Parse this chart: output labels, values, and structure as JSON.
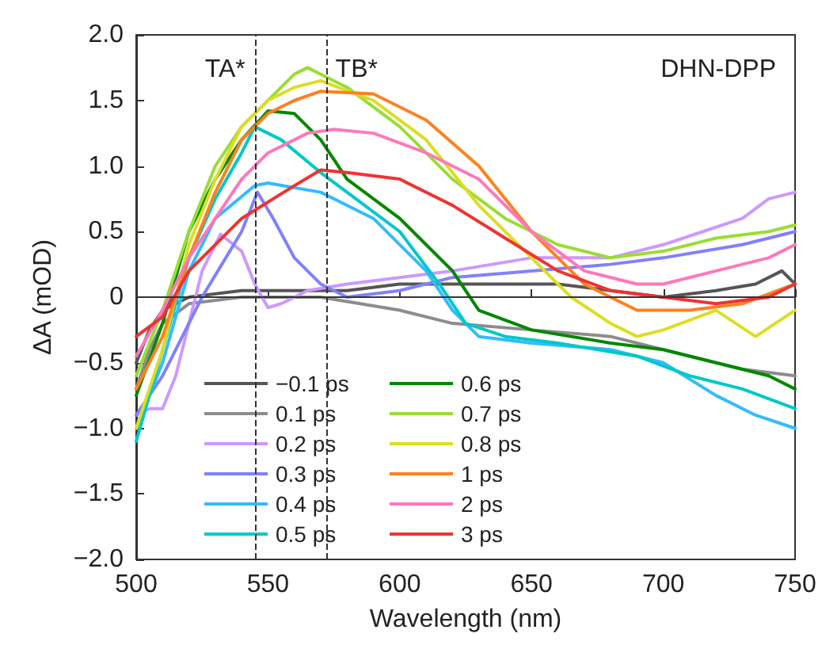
{
  "chart_data": {
    "type": "line",
    "xlabel": "Wavelength (nm)",
    "ylabel": "ΔA (mOD)",
    "xlim": [
      500,
      750
    ],
    "xticks": [
      500,
      550,
      600,
      650,
      700,
      750
    ],
    "ylim": [
      -2.0,
      2.0
    ],
    "yticks": [
      {
        "value": -2,
        "label": "−2.0"
      },
      {
        "value": -1.5,
        "label": "−1.5"
      },
      {
        "value": -1,
        "label": "−1.0"
      },
      {
        "value": -0.5,
        "label": "−0.5"
      },
      {
        "value": 0,
        "label": "0"
      },
      {
        "value": 0.5,
        "label": "0.5"
      },
      {
        "value": 1,
        "label": "1.0"
      },
      {
        "value": 1.5,
        "label": "1.5"
      },
      {
        "value": 2,
        "label": "2.0"
      }
    ],
    "grid": false,
    "legend": "bottom left",
    "marker": "none",
    "line_style": "solid",
    "annotations": [
      "DHN-DPP"
    ],
    "ref_lines": [
      {
        "axis": "x",
        "value": 545,
        "label": "TA*",
        "color": "#333333",
        "line_style": "dashed"
      },
      {
        "axis": "x",
        "value": 572,
        "label": "TB*",
        "color": "#333333",
        "line_style": "dashed"
      },
      {
        "axis": "y",
        "value": 0,
        "color": "#333333",
        "line_style": "solid"
      }
    ],
    "series": [
      {
        "name": "−0.1 ps",
        "color": "#555555",
        "x": [
          500,
          505,
          510,
          520,
          540,
          560,
          580,
          600,
          620,
          650,
          660,
          680,
          700,
          720,
          735,
          745,
          750
        ],
        "values": [
          -0.5,
          -0.25,
          -0.1,
          0,
          0.05,
          0.05,
          0.05,
          0.1,
          0.1,
          0.1,
          0.1,
          0.05,
          0,
          0.05,
          0.1,
          0.2,
          0.1
        ]
      },
      {
        "name": "0.1 ps",
        "color": "#8c8c8c",
        "x": [
          500,
          505,
          510,
          520,
          540,
          570,
          600,
          620,
          650,
          680,
          710,
          730,
          750
        ],
        "values": [
          -0.7,
          -0.4,
          -0.2,
          -0.05,
          0,
          0,
          -0.1,
          -0.2,
          -0.25,
          -0.3,
          -0.45,
          -0.55,
          -0.6
        ]
      },
      {
        "name": "0.2 ps",
        "color": "#cc99ff",
        "x": [
          500,
          505,
          510,
          515,
          520,
          525,
          532,
          540,
          545,
          550,
          555,
          565,
          580,
          600,
          620,
          650,
          680,
          700,
          715,
          730,
          740,
          750
        ],
        "values": [
          -0.9,
          -0.85,
          -0.85,
          -0.6,
          -0.2,
          0.2,
          0.48,
          0.35,
          0.1,
          -0.08,
          -0.05,
          0.05,
          0.1,
          0.15,
          0.2,
          0.3,
          0.3,
          0.4,
          0.5,
          0.6,
          0.75,
          0.8
        ]
      },
      {
        "name": "0.3 ps",
        "color": "#8080ff",
        "x": [
          500,
          510,
          525,
          540,
          546,
          552,
          560,
          570,
          580,
          600,
          620,
          650,
          680,
          700,
          730,
          750
        ],
        "values": [
          -0.9,
          -0.6,
          0,
          0.5,
          0.8,
          0.6,
          0.3,
          0.1,
          0,
          0.05,
          0.15,
          0.2,
          0.25,
          0.3,
          0.4,
          0.5
        ]
      },
      {
        "name": "0.4 ps",
        "color": "#33bbff",
        "x": [
          500,
          510,
          520,
          530,
          545,
          550,
          570,
          590,
          610,
          620,
          630,
          650,
          680,
          700,
          720,
          735,
          750
        ],
        "values": [
          -1.0,
          -0.5,
          0.2,
          0.6,
          0.85,
          0.87,
          0.8,
          0.6,
          0.2,
          -0.1,
          -0.3,
          -0.35,
          -0.4,
          -0.5,
          -0.75,
          -0.9,
          -1.0
        ]
      },
      {
        "name": "0.5 ps",
        "color": "#00c8c8",
        "x": [
          500,
          510,
          520,
          530,
          540,
          545,
          555,
          570,
          580,
          600,
          615,
          625,
          640,
          660,
          690,
          710,
          730,
          750
        ],
        "values": [
          -1.1,
          -0.4,
          0.3,
          0.75,
          1.1,
          1.3,
          1.2,
          0.95,
          0.8,
          0.5,
          0.1,
          -0.2,
          -0.3,
          -0.35,
          -0.45,
          -0.6,
          -0.7,
          -0.85
        ]
      },
      {
        "name": "0.6 ps",
        "color": "#008800",
        "x": [
          500,
          510,
          520,
          530,
          540,
          550,
          560,
          570,
          580,
          600,
          620,
          630,
          650,
          680,
          700,
          720,
          740,
          750
        ],
        "values": [
          -0.75,
          -0.2,
          0.5,
          0.9,
          1.2,
          1.42,
          1.4,
          1.2,
          0.9,
          0.6,
          0.2,
          -0.1,
          -0.25,
          -0.35,
          -0.4,
          -0.5,
          -0.6,
          -0.7
        ]
      },
      {
        "name": "0.7 ps",
        "color": "#99dd33",
        "x": [
          500,
          510,
          520,
          530,
          540,
          550,
          560,
          565,
          580,
          600,
          620,
          640,
          660,
          680,
          700,
          720,
          740,
          750
        ],
        "values": [
          -0.6,
          -0.1,
          0.5,
          1.0,
          1.3,
          1.5,
          1.7,
          1.75,
          1.6,
          1.3,
          0.9,
          0.6,
          0.4,
          0.3,
          0.35,
          0.45,
          0.5,
          0.55
        ]
      },
      {
        "name": "0.8 ps",
        "color": "#dddd22",
        "x": [
          500,
          510,
          520,
          530,
          540,
          550,
          560,
          570,
          590,
          610,
          630,
          650,
          665,
          680,
          690,
          700,
          720,
          735,
          750
        ],
        "values": [
          -1.0,
          -0.4,
          0.4,
          0.9,
          1.3,
          1.5,
          1.6,
          1.65,
          1.5,
          1.2,
          0.7,
          0.3,
          0,
          -0.2,
          -0.3,
          -0.25,
          -0.1,
          -0.3,
          -0.1
        ]
      },
      {
        "name": "1 ps",
        "color": "#ff8020",
        "x": [
          500,
          510,
          520,
          530,
          540,
          550,
          560,
          570,
          590,
          610,
          630,
          650,
          670,
          690,
          710,
          730,
          750
        ],
        "values": [
          -0.7,
          -0.3,
          0.3,
          0.8,
          1.2,
          1.4,
          1.5,
          1.57,
          1.55,
          1.35,
          1.0,
          0.5,
          0.1,
          -0.1,
          -0.1,
          -0.05,
          0.1
        ]
      },
      {
        "name": "2 ps",
        "color": "#ff77bb",
        "x": [
          500,
          510,
          520,
          530,
          540,
          550,
          565,
          575,
          590,
          610,
          630,
          650,
          670,
          690,
          700,
          720,
          740,
          750
        ],
        "values": [
          -0.45,
          -0.1,
          0.3,
          0.6,
          0.9,
          1.1,
          1.25,
          1.28,
          1.25,
          1.1,
          0.9,
          0.5,
          0.2,
          0.1,
          0.1,
          0.2,
          0.3,
          0.4
        ]
      },
      {
        "name": "3 ps",
        "color": "#ee3333",
        "x": [
          500,
          510,
          520,
          530,
          540,
          560,
          570,
          580,
          600,
          620,
          640,
          660,
          680,
          700,
          720,
          740,
          750
        ],
        "values": [
          -0.3,
          -0.15,
          0.2,
          0.4,
          0.6,
          0.85,
          0.97,
          0.95,
          0.9,
          0.7,
          0.45,
          0.2,
          0.05,
          0,
          -0.05,
          0,
          0.1
        ]
      }
    ]
  }
}
